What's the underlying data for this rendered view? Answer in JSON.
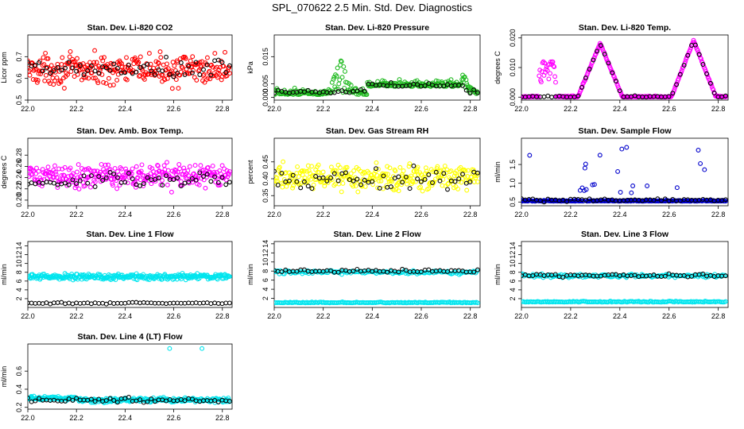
{
  "figure": {
    "title": "SPL_070622  2.5 Min. Std. Dev. Diagnostics"
  },
  "chart_data": [
    {
      "type": "scatter",
      "title": "Stan. Dev. Li-820 CO2",
      "ylabel": "Licor ppm",
      "xlim": [
        22.0,
        22.84
      ],
      "ylim": [
        0.5,
        0.8
      ],
      "yticks": [
        "0.5",
        "0.6",
        "0.7"
      ],
      "xticks": [
        "22.0",
        "22.2",
        "22.4",
        "22.6",
        "22.8"
      ],
      "color": "#ff0000",
      "series": [
        {
          "name": "color",
          "pattern": "noise",
          "base": 0.64,
          "amp": 0.08,
          "n": 300
        },
        {
          "name": "black",
          "pattern": "noise",
          "base": 0.64,
          "amp": 0.06,
          "n": 55
        }
      ]
    },
    {
      "type": "scatter",
      "title": "Stan. Dev. Li-820 Pressure",
      "ylabel": "kPa",
      "xlim": [
        22.0,
        22.84
      ],
      "ylim": [
        -0.001,
        0.023
      ],
      "yticks": [
        "0.000",
        "0.005",
        "0.015"
      ],
      "xticks": [
        "22.0",
        "22.2",
        "22.4",
        "22.6",
        "22.8"
      ],
      "color": "#22bb22",
      "series": [
        {
          "name": "color",
          "pattern": "pressure",
          "n": 300
        },
        {
          "name": "black",
          "pattern": "pressure_black",
          "n": 55
        }
      ]
    },
    {
      "type": "scatter",
      "title": "Stan. Dev. Li-820 Temp.",
      "ylabel": "degrees C",
      "xlim": [
        22.0,
        22.84
      ],
      "ylim": [
        -0.001,
        0.021
      ],
      "yticks": [
        "0.000",
        "0.010",
        "0.020"
      ],
      "xticks": [
        "22.0",
        "22.2",
        "22.4",
        "22.6",
        "22.8"
      ],
      "color": "#ff00ff",
      "series": [
        {
          "name": "color",
          "pattern": "temp",
          "n": 300
        },
        {
          "name": "black",
          "pattern": "temp_black",
          "n": 55
        }
      ]
    },
    {
      "type": "scatter",
      "title": "Stan. Dev. Amb. Box Temp.",
      "ylabel": "degrees C",
      "xlim": [
        22.0,
        22.84
      ],
      "ylim": [
        0.19,
        0.31
      ],
      "yticks": [
        "0.20",
        "0.22",
        "0.24",
        "0.26",
        "0.28"
      ],
      "xticks": [
        "22.0",
        "22.2",
        "22.4",
        "22.6",
        "22.8"
      ],
      "color": "#ff00ff",
      "series": [
        {
          "name": "color",
          "pattern": "noise",
          "base": 0.243,
          "amp": 0.025,
          "n": 300
        },
        {
          "name": "black",
          "pattern": "noise",
          "base": 0.235,
          "amp": 0.015,
          "n": 55
        }
      ]
    },
    {
      "type": "scatter",
      "title": "Stan. Dev. Gas Stream RH",
      "ylabel": "percent",
      "xlim": [
        22.0,
        22.84
      ],
      "ylim": [
        0.32,
        0.52
      ],
      "yticks": [
        "0.35",
        "0.40",
        "0.45"
      ],
      "xticks": [
        "22.0",
        "22.2",
        "22.4",
        "22.6",
        "22.8"
      ],
      "color": "#ffff00",
      "series": [
        {
          "name": "color",
          "pattern": "noise",
          "base": 0.405,
          "amp": 0.045,
          "n": 300
        },
        {
          "name": "black",
          "pattern": "noise",
          "base": 0.4,
          "amp": 0.04,
          "n": 55
        }
      ]
    },
    {
      "type": "scatter",
      "title": "Stan. Dev. Sample Flow",
      "ylabel": "ml/min",
      "xlim": [
        22.0,
        22.84
      ],
      "ylim": [
        0.4,
        2.2
      ],
      "yticks": [
        "0.5",
        "1.0",
        "1.5"
      ],
      "xticks": [
        "22.0",
        "22.2",
        "22.4",
        "22.6",
        "22.8"
      ],
      "color": "#0000cc",
      "series": [
        {
          "name": "color",
          "pattern": "flow",
          "n": 300
        },
        {
          "name": "black",
          "pattern": "noise",
          "base": 0.55,
          "amp": 0.05,
          "n": 55
        }
      ]
    },
    {
      "type": "scatter",
      "title": "Stan. Dev. Line 1 Flow",
      "ylabel": "ml/min",
      "xlim": [
        22.0,
        22.84
      ],
      "ylim": [
        0,
        15
      ],
      "yticks": [
        "2",
        "4",
        "6",
        "8",
        "10",
        "12",
        "14"
      ],
      "xticks": [
        "22.0",
        "22.2",
        "22.4",
        "22.6",
        "22.8"
      ],
      "color": "#00e5ee",
      "series": [
        {
          "name": "color",
          "pattern": "noise",
          "base": 7.0,
          "amp": 0.8,
          "n": 300
        },
        {
          "name": "black",
          "pattern": "noise",
          "base": 1.0,
          "amp": 0.2,
          "n": 55
        }
      ]
    },
    {
      "type": "scatter",
      "title": "Stan. Dev. Line 2 Flow",
      "ylabel": "ml/min",
      "xlim": [
        22.0,
        22.84
      ],
      "ylim": [
        0,
        14.5
      ],
      "yticks": [
        "2",
        "4",
        "6",
        "8",
        "10",
        "12",
        "14"
      ],
      "xticks": [
        "22.0",
        "22.2",
        "22.4",
        "22.6",
        "22.8"
      ],
      "color": "#00e5ee",
      "series": [
        {
          "name": "color",
          "pattern": "twoband",
          "hi": 7.8,
          "lo": 1.0,
          "n": 320
        },
        {
          "name": "black",
          "pattern": "noise",
          "base": 8.0,
          "amp": 0.4,
          "n": 55
        }
      ]
    },
    {
      "type": "scatter",
      "title": "Stan. Dev. Line 3 Flow",
      "ylabel": "ml/min",
      "xlim": [
        22.0,
        22.84
      ],
      "ylim": [
        0,
        15
      ],
      "yticks": [
        "2",
        "4",
        "6",
        "8",
        "10",
        "12",
        "14"
      ],
      "xticks": [
        "22.0",
        "22.2",
        "22.4",
        "22.6",
        "22.8"
      ],
      "color": "#00e5ee",
      "series": [
        {
          "name": "color",
          "pattern": "twoband",
          "hi": 7.2,
          "lo": 1.2,
          "n": 320
        },
        {
          "name": "black",
          "pattern": "noise",
          "base": 7.3,
          "amp": 0.4,
          "n": 55
        }
      ]
    },
    {
      "type": "scatter",
      "title": "Stan. Dev. Line 4 (LT) Flow",
      "ylabel": "ml/min",
      "xlim": [
        22.0,
        22.84
      ],
      "ylim": [
        0.18,
        0.9
      ],
      "yticks": [
        "0.2",
        "0.4",
        "0.6"
      ],
      "xticks": [
        "22.0",
        "22.2",
        "22.4",
        "22.6",
        "22.8"
      ],
      "color": "#00e5ee",
      "series": [
        {
          "name": "color",
          "pattern": "line4",
          "n": 300
        },
        {
          "name": "black",
          "pattern": "noise",
          "base": 0.28,
          "amp": 0.03,
          "n": 55
        }
      ]
    }
  ]
}
